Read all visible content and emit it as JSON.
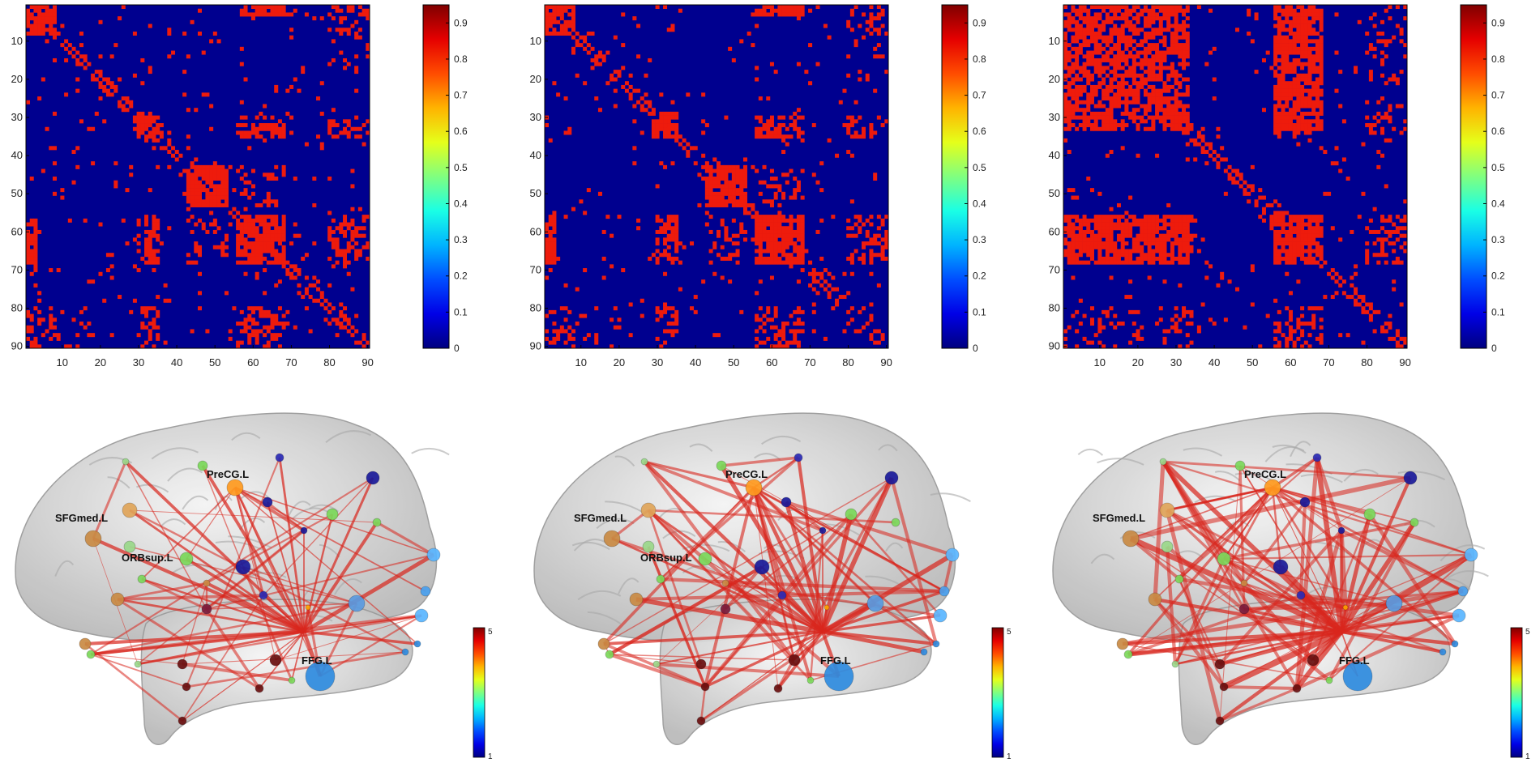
{
  "chart_data": [
    {
      "type": "heatmap",
      "panel": "matrix-1",
      "title": "",
      "xlabel": "",
      "ylabel": "",
      "xlim": [
        1,
        90
      ],
      "ylim": [
        1,
        90
      ],
      "x_ticks": [
        "10",
        "20",
        "30",
        "40",
        "50",
        "60",
        "70",
        "80",
        "90"
      ],
      "y_ticks": [
        "10",
        "20",
        "30",
        "40",
        "50",
        "60",
        "70",
        "80",
        "90"
      ],
      "colorbar_ticks": [
        "0",
        "0.1",
        "0.2",
        "0.3",
        "0.4",
        "0.5",
        "0.6",
        "0.7",
        "0.8",
        "0.9"
      ],
      "colorbar_range": [
        0,
        0.95
      ],
      "background_value": 0,
      "connection_value": 0.9,
      "blocks": [
        [
          56,
          68,
          56,
          68
        ],
        [
          43,
          53,
          43,
          53
        ],
        [
          1,
          8,
          1,
          8
        ],
        [
          29,
          35,
          29,
          35
        ]
      ]
    },
    {
      "type": "heatmap",
      "panel": "matrix-2",
      "title": "",
      "xlabel": "",
      "ylabel": "",
      "xlim": [
        1,
        90
      ],
      "ylim": [
        1,
        90
      ],
      "x_ticks": [
        "10",
        "20",
        "30",
        "40",
        "50",
        "60",
        "70",
        "80",
        "90"
      ],
      "y_ticks": [
        "10",
        "20",
        "30",
        "40",
        "50",
        "60",
        "70",
        "80",
        "90"
      ],
      "colorbar_ticks": [
        "0",
        "0.1",
        "0.2",
        "0.3",
        "0.4",
        "0.5",
        "0.6",
        "0.7",
        "0.8",
        "0.9"
      ],
      "colorbar_range": [
        0,
        0.95
      ],
      "background_value": 0,
      "connection_value": 0.9,
      "blocks": [
        [
          56,
          68,
          56,
          68
        ],
        [
          43,
          53,
          43,
          53
        ],
        [
          1,
          8,
          1,
          8
        ],
        [
          29,
          35,
          29,
          35
        ]
      ]
    },
    {
      "type": "heatmap",
      "panel": "matrix-3",
      "title": "",
      "xlabel": "",
      "ylabel": "",
      "xlim": [
        1,
        90
      ],
      "ylim": [
        1,
        90
      ],
      "x_ticks": [
        "10",
        "20",
        "30",
        "40",
        "50",
        "60",
        "70",
        "80",
        "90"
      ],
      "y_ticks": [
        "10",
        "20",
        "30",
        "40",
        "50",
        "60",
        "70",
        "80",
        "90"
      ],
      "colorbar_ticks": [
        "0",
        "0.1",
        "0.2",
        "0.3",
        "0.4",
        "0.5",
        "0.6",
        "0.7",
        "0.8",
        "0.9"
      ],
      "colorbar_range": [
        0,
        0.95
      ],
      "background_value": 0,
      "connection_value": 0.9,
      "blocks": [
        [
          56,
          68,
          56,
          68
        ],
        [
          1,
          33,
          1,
          33
        ],
        [
          56,
          68,
          1,
          33
        ]
      ]
    }
  ],
  "brains": [
    {
      "panel": "brain-1",
      "labels": [
        "PreCG.L",
        "SFGmed.L",
        "FFG.L",
        "ORBsup.L"
      ],
      "colorbar_ticks": [
        "1",
        "5"
      ],
      "edge_density": "low"
    },
    {
      "panel": "brain-2",
      "labels": [
        "PreCG.L",
        "SFGmed.L",
        "FFG.L",
        "ORBsup.L"
      ],
      "colorbar_ticks": [
        "1",
        "5"
      ],
      "edge_density": "medium"
    },
    {
      "panel": "brain-3",
      "labels": [
        "PreCG.L",
        "SFGmed.L",
        "FFG.L"
      ],
      "colorbar_ticks": [
        "1",
        "5"
      ],
      "edge_density": "high"
    }
  ],
  "colors": {
    "matrix_background": "#00008f",
    "matrix_connection": "#ee1b0c",
    "edge": "#d9261d",
    "brain_fill": "#dcdcdc"
  }
}
